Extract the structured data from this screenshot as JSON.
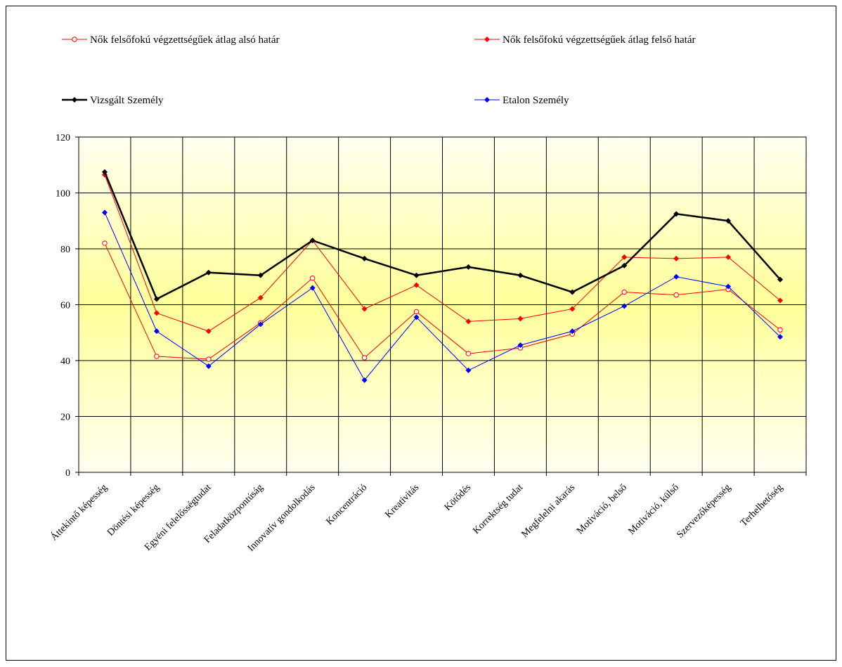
{
  "chart_data": {
    "type": "line",
    "categories": [
      "Áttekintő képesség",
      "Döntési képesség",
      "Egyéni felelősségtudat",
      "Feladatközpontúság",
      "Innovatív gondolkodás",
      "Koncentráció",
      "Kreativitás",
      "Kötődés",
      "Korrektség tudat",
      "Megfelelni akarás",
      "Motiváció, belső",
      "Motiváció, külső",
      "Szervezőképesség",
      "Terhelhetőség"
    ],
    "series": [
      {
        "name": "Nők felsőfokú végzettségűek átlag alsó határ",
        "color": "#ff0000",
        "marker": "circle-open",
        "width": 1,
        "values": [
          82,
          41.5,
          40.5,
          53.5,
          69.5,
          41,
          57.5,
          42.5,
          44.5,
          49.5,
          64.5,
          63.5,
          65.5,
          51
        ]
      },
      {
        "name": "Nők felsőfokú végzettségűek átlag felső határ",
        "color": "#ff0000",
        "marker": "diamond",
        "width": 1,
        "values": [
          106.5,
          57,
          50.5,
          62.5,
          83,
          58.5,
          67,
          54,
          55,
          58.5,
          77,
          76.5,
          77,
          61.5
        ]
      },
      {
        "name": "Vizsgált Személy",
        "color": "#000000",
        "marker": "diamond",
        "width": 2.5,
        "values": [
          107.5,
          62,
          71.5,
          70.5,
          83,
          76.5,
          70.5,
          73.5,
          70.5,
          64.5,
          74,
          92.5,
          90,
          69
        ]
      },
      {
        "name": "Etalon  Személy",
        "color": "#0000ff",
        "marker": "diamond",
        "width": 1,
        "values": [
          93,
          50.5,
          38,
          53,
          66,
          33,
          55.5,
          36.5,
          45.5,
          50.5,
          59.5,
          70,
          66.5,
          48.5
        ]
      }
    ],
    "ylim": [
      0,
      120
    ],
    "yticks": [
      0,
      20,
      40,
      60,
      80,
      100,
      120
    ],
    "grid": true
  }
}
